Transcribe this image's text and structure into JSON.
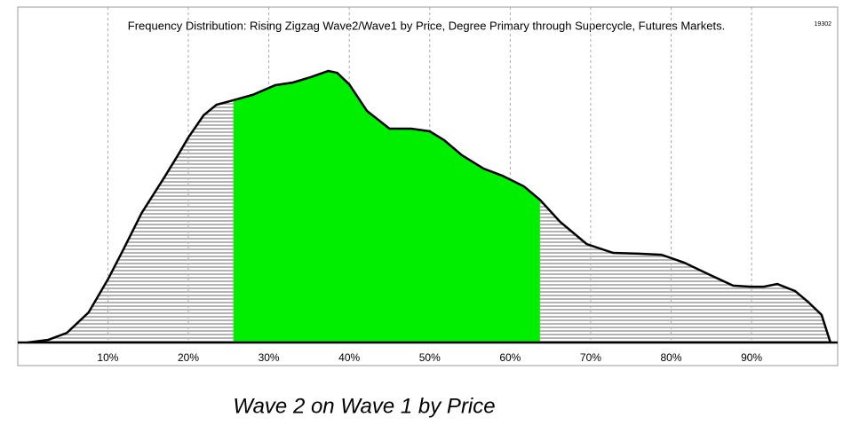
{
  "chart_data": {
    "type": "area",
    "title": "Frequency Distribution: Rising Zigzag Wave2/Wave1 by Price, Degree Primary through Supercycle, Futures Markets.",
    "code": "19302",
    "caption": "Wave 2 on Wave 1 by Price",
    "x": [
      0,
      2.6,
      4.9,
      7.6,
      10,
      12,
      14.2,
      17,
      18.7,
      20,
      21.9,
      23.5,
      25.6,
      28,
      30.8,
      33,
      35.2,
      37.4,
      38.5,
      40,
      42.2,
      45,
      47.7,
      50,
      51.8,
      54,
      56.7,
      59,
      61.7,
      63.7,
      66.2,
      69.5,
      72.8,
      76,
      78.8,
      81.6,
      84.9,
      87.7,
      89.9,
      91.5,
      93.2,
      95.4,
      97,
      98.7,
      99.8
    ],
    "values": [
      0,
      1,
      3.6,
      11.2,
      23.5,
      35.1,
      48.3,
      61.5,
      69.8,
      76.4,
      84.7,
      88.6,
      90.3,
      92.3,
      95.9,
      96.9,
      98.9,
      101.2,
      100.5,
      96.2,
      86.3,
      79.7,
      79.7,
      78.7,
      75.4,
      69.8,
      64.8,
      62.2,
      58.2,
      53.2,
      45,
      36.7,
      33.4,
      33.1,
      32.7,
      29.8,
      25.1,
      21.2,
      20.8,
      20.8,
      21.8,
      19.2,
      15.2,
      10.3,
      0
    ],
    "color": "#000000",
    "fill_color": "#b4b4b4",
    "highlight": {
      "from": 25.6,
      "to": 63.7,
      "color": "#00ee00"
    },
    "xlim": [
      -1.2,
      100.7
    ],
    "ylim": [
      0,
      125
    ],
    "xticks": [
      {
        "value": 10,
        "label": "10%"
      },
      {
        "value": 20,
        "label": "20%"
      },
      {
        "value": 30,
        "label": "30%"
      },
      {
        "value": 40,
        "label": "40%"
      },
      {
        "value": 50,
        "label": "50%"
      },
      {
        "value": 60,
        "label": "60%"
      },
      {
        "value": 70,
        "label": "70%"
      },
      {
        "value": 80,
        "label": "80%"
      },
      {
        "value": 90,
        "label": "90%"
      }
    ],
    "grid": true
  }
}
